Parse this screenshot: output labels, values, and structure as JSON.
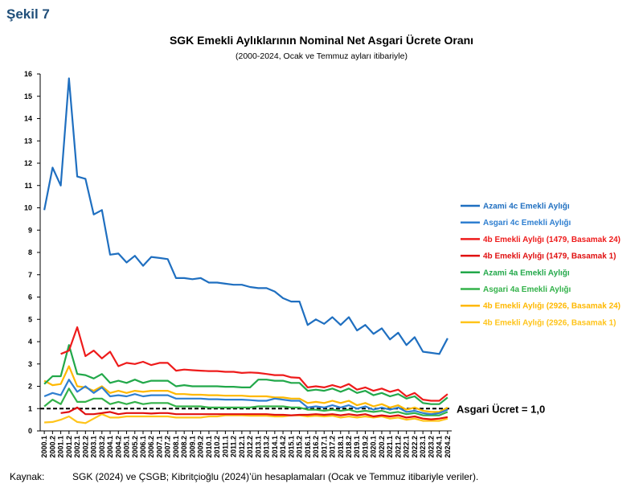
{
  "figure_label": "Şekil 7",
  "source": {
    "label": "Kaynak:",
    "text": "SGK (2024) ve ÇSGB; Kibritçioğlu (2024)’ün hesaplamaları (Ocak ve Temmuz itibariyle veriler)."
  },
  "chart_data": {
    "type": "line",
    "title": "SGK Emekli Aylıklarının Nominal Net Asgari Ücrete Oranı",
    "subtitle": "(2000-2024, Ocak ve Temmuz ayları itibariyle)",
    "xlabel": "",
    "ylabel": "",
    "ylim": [
      0,
      16
    ],
    "yticks": [
      "0",
      "1",
      "2",
      "3",
      "4",
      "5",
      "6",
      "7",
      "8",
      "9",
      "10",
      "11",
      "12",
      "13",
      "14",
      "15",
      "16"
    ],
    "grid": false,
    "legend_position": "right",
    "categories": [
      "2000.1",
      "2000.2",
      "2001.1",
      "2001.2",
      "2002.1",
      "2002.2",
      "2003.1",
      "2003.2",
      "2004.1",
      "2004.2",
      "2005.1",
      "2005.2",
      "2006.1",
      "2006.2",
      "2007.1",
      "2007.2",
      "2008.1",
      "2008.2",
      "2009.1",
      "2009.2",
      "2010.1",
      "2010.2",
      "2011.1",
      "2011.2",
      "2012.1",
      "2012.2",
      "2013.1",
      "2013.2",
      "2014.1",
      "2014.2",
      "2015.1",
      "2015.2",
      "2016.1",
      "2016.2",
      "2017.1",
      "2017.2",
      "2018.1",
      "2018.2",
      "2019.1",
      "2019.2",
      "2020.1",
      "2020.2",
      "2021.1",
      "2021.2",
      "2022.1",
      "2022.2",
      "2023.1",
      "2023.2",
      "2024.1",
      "2024.2"
    ],
    "reference_line": {
      "value": 1.0,
      "label": "Asgari Ücret = 1,0"
    },
    "series": [
      {
        "name": "Azami 4c Emekli Aylığı",
        "color": "#1f6fc0",
        "values": [
          9.9,
          11.8,
          11.0,
          15.8,
          11.4,
          11.3,
          9.7,
          9.9,
          7.9,
          7.95,
          7.55,
          7.85,
          7.4,
          7.8,
          7.75,
          7.7,
          6.85,
          6.85,
          6.8,
          6.85,
          6.65,
          6.65,
          6.6,
          6.55,
          6.55,
          6.45,
          6.4,
          6.4,
          6.25,
          5.95,
          5.8,
          5.8,
          4.75,
          5.0,
          4.8,
          5.1,
          4.75,
          5.1,
          4.5,
          4.75,
          4.35,
          4.6,
          4.1,
          4.4,
          3.85,
          4.2,
          3.55,
          3.5,
          3.45,
          4.15
        ]
      },
      {
        "name": "Asgari 4c Emekli Aylığı",
        "color": "#2f7fd0",
        "values": [
          1.55,
          1.7,
          1.6,
          2.3,
          1.75,
          2.0,
          1.7,
          1.95,
          1.55,
          1.6,
          1.55,
          1.65,
          1.55,
          1.6,
          1.6,
          1.6,
          1.45,
          1.45,
          1.45,
          1.45,
          1.42,
          1.42,
          1.4,
          1.4,
          1.4,
          1.38,
          1.35,
          1.35,
          1.45,
          1.4,
          1.35,
          1.35,
          1.05,
          1.1,
          1.05,
          1.15,
          1.05,
          1.15,
          1.0,
          1.1,
          0.95,
          1.05,
          0.95,
          1.05,
          0.85,
          0.9,
          0.8,
          0.75,
          0.8,
          0.95
        ]
      },
      {
        "name": "4b Emekli Aylığı (1479, Basamak 24)",
        "color": "#ee1b1b",
        "values": [
          null,
          null,
          3.45,
          3.6,
          4.65,
          3.35,
          3.6,
          3.25,
          3.55,
          2.9,
          3.05,
          3.0,
          3.1,
          2.95,
          3.05,
          3.05,
          2.7,
          2.75,
          2.72,
          2.7,
          2.68,
          2.68,
          2.65,
          2.65,
          2.6,
          2.62,
          2.6,
          2.55,
          2.5,
          2.5,
          2.4,
          2.38,
          1.95,
          2.0,
          1.95,
          2.05,
          1.95,
          2.1,
          1.85,
          1.95,
          1.8,
          1.9,
          1.75,
          1.85,
          1.55,
          1.7,
          1.4,
          1.35,
          1.35,
          1.65
        ]
      },
      {
        "name": "4b Emekli Aylığı (1479, Basamak 1)",
        "color": "#e01010",
        "values": [
          null,
          null,
          0.8,
          0.85,
          1.05,
          0.75,
          0.75,
          0.8,
          0.85,
          0.75,
          0.8,
          0.8,
          0.8,
          0.78,
          0.8,
          0.8,
          0.75,
          0.75,
          0.75,
          0.75,
          0.75,
          0.75,
          0.75,
          0.75,
          0.75,
          0.75,
          0.75,
          0.75,
          0.72,
          0.72,
          0.7,
          0.72,
          0.72,
          0.75,
          0.72,
          0.75,
          0.7,
          0.75,
          0.7,
          0.75,
          0.65,
          0.7,
          0.65,
          0.7,
          0.6,
          0.65,
          0.55,
          0.52,
          0.55,
          0.62
        ]
      },
      {
        "name": "Azami 4a Emekli Aylığı",
        "color": "#22a84a",
        "values": [
          2.1,
          2.45,
          2.45,
          3.85,
          2.55,
          2.5,
          2.35,
          2.55,
          2.15,
          2.25,
          2.15,
          2.3,
          2.15,
          2.25,
          2.25,
          2.25,
          2.0,
          2.05,
          2.0,
          2.0,
          2.0,
          2.0,
          1.98,
          1.98,
          1.95,
          1.95,
          2.3,
          2.3,
          2.25,
          2.25,
          2.15,
          2.15,
          1.8,
          1.85,
          1.8,
          1.9,
          1.75,
          1.9,
          1.7,
          1.8,
          1.6,
          1.7,
          1.55,
          1.65,
          1.45,
          1.55,
          1.25,
          1.2,
          1.2,
          1.5
        ]
      },
      {
        "name": "Asgari 4a Emekli Aylığı",
        "color": "#33b24a",
        "values": [
          1.1,
          1.4,
          1.2,
          1.9,
          1.3,
          1.3,
          1.45,
          1.45,
          1.2,
          1.3,
          1.2,
          1.3,
          1.2,
          1.25,
          1.25,
          1.25,
          1.1,
          1.1,
          1.1,
          1.1,
          1.05,
          1.05,
          1.05,
          1.05,
          1.05,
          1.05,
          1.1,
          1.1,
          1.1,
          1.1,
          1.05,
          1.05,
          0.95,
          0.95,
          0.9,
          0.95,
          0.9,
          0.95,
          0.85,
          0.9,
          0.85,
          0.9,
          0.8,
          0.85,
          0.75,
          0.8,
          0.7,
          0.7,
          0.7,
          0.85
        ]
      },
      {
        "name": "4b Emekli Aylığı (2926, Basamak 24)",
        "color": "#ffb800",
        "values": [
          2.25,
          2.05,
          2.1,
          2.9,
          2.0,
          1.95,
          1.8,
          2.0,
          1.7,
          1.8,
          1.7,
          1.8,
          1.75,
          1.8,
          1.8,
          1.8,
          1.65,
          1.65,
          1.62,
          1.62,
          1.6,
          1.6,
          1.58,
          1.58,
          1.58,
          1.55,
          1.55,
          1.55,
          1.5,
          1.5,
          1.45,
          1.45,
          1.25,
          1.3,
          1.25,
          1.35,
          1.25,
          1.35,
          1.15,
          1.25,
          1.1,
          1.2,
          1.05,
          1.15,
          0.95,
          1.05,
          0.9,
          0.85,
          0.85,
          1.05
        ]
      },
      {
        "name": "4b Emekli Aylığı (2926, Basamak 1)",
        "color": "#ffc41a",
        "values": [
          0.38,
          0.4,
          0.5,
          0.65,
          0.4,
          0.35,
          0.55,
          0.75,
          0.6,
          0.6,
          0.65,
          0.65,
          0.65,
          0.65,
          0.65,
          0.65,
          0.6,
          0.6,
          0.6,
          0.6,
          0.65,
          0.65,
          0.7,
          0.7,
          0.7,
          0.68,
          0.68,
          0.68,
          0.65,
          0.65,
          0.7,
          0.7,
          0.65,
          0.68,
          0.65,
          0.68,
          0.6,
          0.65,
          0.6,
          0.65,
          0.6,
          0.65,
          0.55,
          0.6,
          0.5,
          0.55,
          0.45,
          0.45,
          0.45,
          0.55
        ]
      }
    ]
  }
}
